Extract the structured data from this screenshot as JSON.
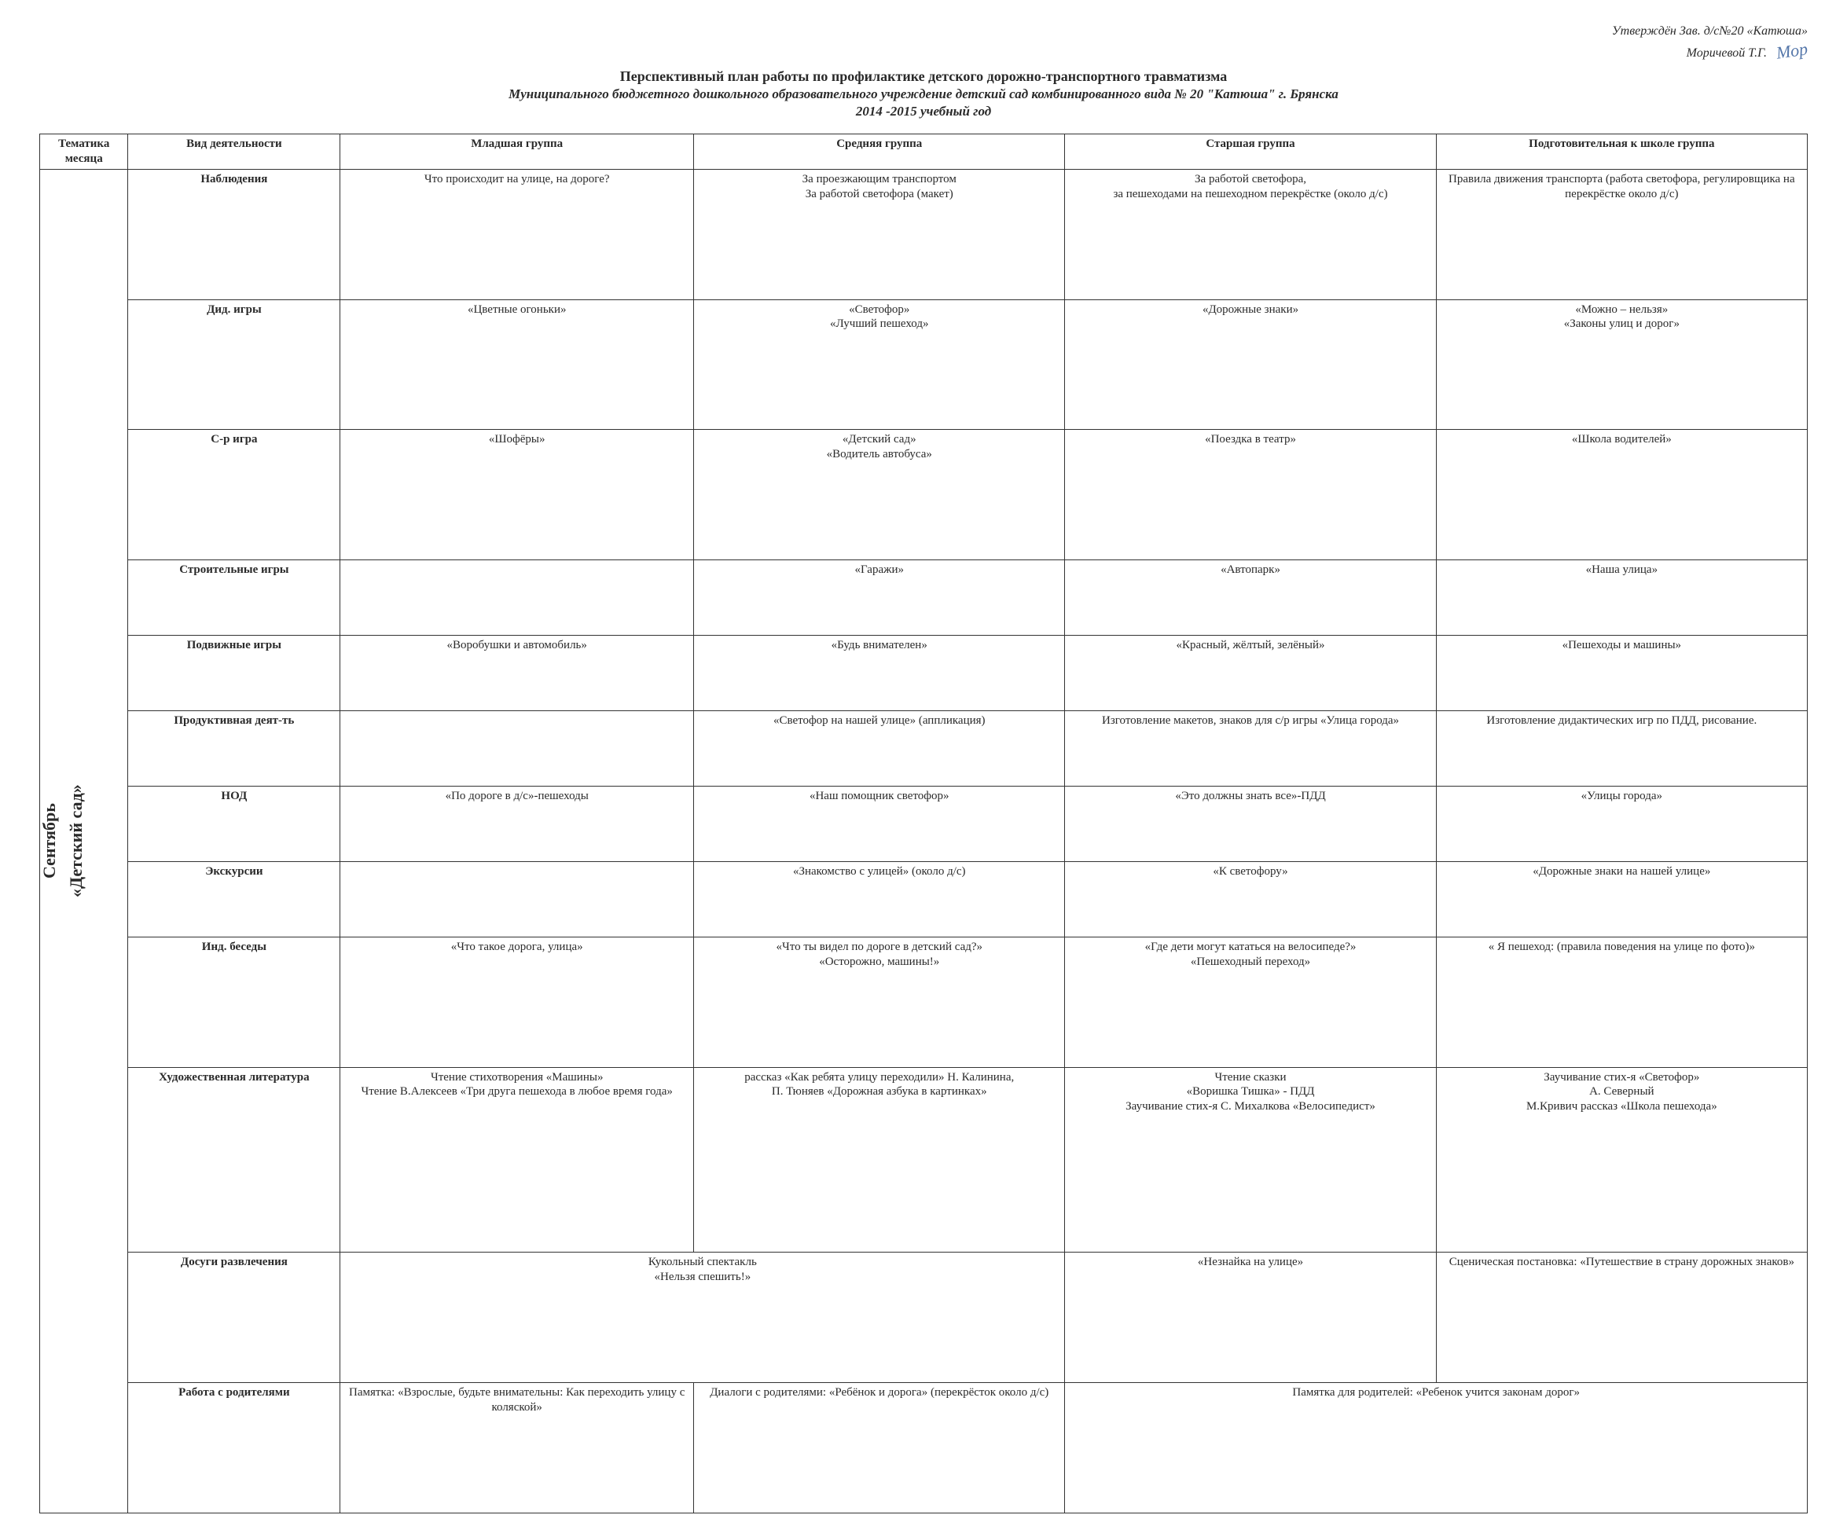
{
  "approval": {
    "line1": "Утверждён Зав. д/с№20 «Катюша»",
    "line2_prefix": "Моричевой Т.Г.",
    "signature": "Мор"
  },
  "title": {
    "line1": "Перспективный план работы по профилактике детского дорожно-транспортного травматизма",
    "line2": "Муниципального бюджетного дошкольного образовательного учреждение детский сад комбинированного вида № 20 \"Катюша\" г. Брянска",
    "line3": "2014 -2015 учебный год"
  },
  "headers": {
    "month": "Тематика месяца",
    "type": "Вид деятельности",
    "g1": "Младшая группа",
    "g2": "Средняя группа",
    "g3": "Старшая группа",
    "g4": "Подготовительная к школе группа"
  },
  "month": {
    "name": "Сентябрь",
    "theme": "«Детский сад»"
  },
  "rows": {
    "r1": {
      "label": "Наблюдения",
      "g1": "Что происходит на улице, на дороге?",
      "g2": "За проезжающим транспортом\nЗа работой светофора (макет)",
      "g3": "За работой светофора,\nза пешеходами на пешеходном перекрёстке (около д/с)",
      "g4": "Правила движения транспорта (работа светофора, регулировщика на перекрёстке около д/с)"
    },
    "r2": {
      "label": "Дид. игры",
      "g1": "«Цветные огоньки»",
      "g2": "«Светофор»\n«Лучший пешеход»",
      "g3": "«Дорожные знаки»",
      "g4": "«Можно – нельзя»\n«Законы улиц и дорог»"
    },
    "r3": {
      "label": "С-р игра",
      "g1": "«Шофёры»",
      "g2": "«Детский сад»\n«Водитель автобуса»",
      "g3": "«Поездка в театр»",
      "g4": "«Школа водителей»"
    },
    "r4": {
      "label": "Строительные игры",
      "g1": "",
      "g2": "«Гаражи»",
      "g3": "«Автопарк»",
      "g4": "«Наша улица»"
    },
    "r5": {
      "label": "Подвижные игры",
      "g1": "«Воробушки и автомобиль»",
      "g2": "«Будь внимателен»",
      "g3": "«Красный, жёлтый, зелёный»",
      "g4": "«Пешеходы и машины»"
    },
    "r6": {
      "label": "Продуктивная деят-ть",
      "g1": "",
      "g2": "«Светофор на нашей улице» (аппликация)",
      "g3": "Изготовление макетов, знаков для с/р игры «Улица  города»",
      "g4": "Изготовление дидактических игр по ПДД, рисование."
    },
    "r7": {
      "label": "НОД",
      "g1": "«По дороге в д/с»-пешеходы",
      "g2": "«Наш помощник светофор»",
      "g3": "«Это должны знать все»-ПДД",
      "g4": "«Улицы города»"
    },
    "r8": {
      "label": "Экскурсии",
      "g1": "",
      "g2": "«Знакомство с улицей» (около д/с)",
      "g3": "«К светофору»",
      "g4": "«Дорожные знаки на нашей улице»"
    },
    "r9": {
      "label": "Инд. беседы",
      "g1": "«Что такое дорога, улица»",
      "g2": "«Что ты видел по дороге в детский сад?»\n«Осторожно, машины!»",
      "g3": "«Где дети могут кататься на велосипеде?»\n«Пешеходный переход»",
      "g4": "« Я пешеход: (правила поведения на улице по фото)»"
    },
    "r10": {
      "label": "Художественная литература",
      "g1": "Чтение стихотворения «Машины»\nЧтение В.Алексеев «Три друга пешехода в любое время года»",
      "g2": "рассказ «Как ребята улицу переходили» Н. Калинина,\nП. Тюняев «Дорожная азбука в картинках»",
      "g3": "Чтение сказки\n«Воришка Тишка» - ПДД\nЗаучивание стих-я С. Михалкова «Велосипедист»",
      "g4": "Заучивание стих-я «Светофор»\nА. Северный\nМ.Кривич  рассказ «Школа пешехода»"
    },
    "r11": {
      "label": "Досуги развлечения",
      "g1g2": "Кукольный спектакль\n«Нельзя спешить!»",
      "g3": "«Незнайка на улице»",
      "g4": "Сценическая постановка: «Путешествие в страну дорожных знаков»"
    },
    "r12": {
      "label": "Работа с родителями",
      "g1": "Памятка: «Взрослые, будьте внимательны: Как переходить улицу с коляской»",
      "g2": "Диалоги с родителями: «Ребёнок и дорога» (перекрёсток около д/с)",
      "g3g4": "Памятка для родителей: «Ребенок учится законам дорог»"
    }
  }
}
